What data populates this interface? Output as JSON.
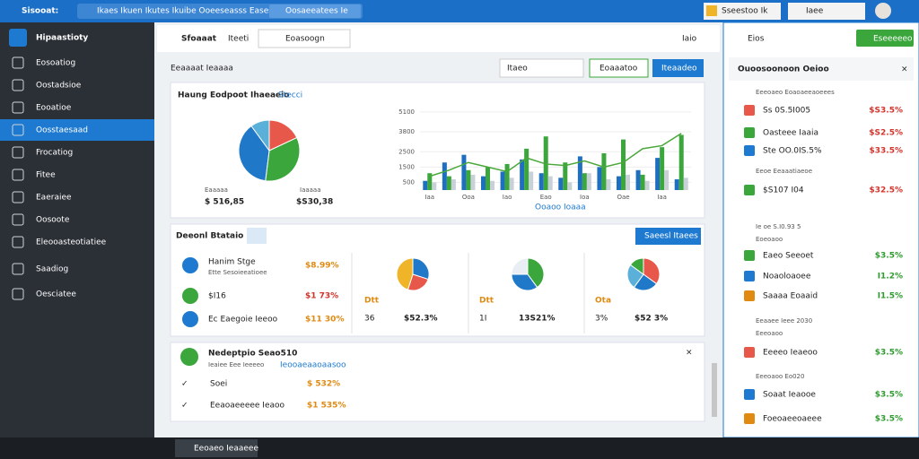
{
  "window": {
    "app_title": "Sisooat:",
    "address": "Ikaes Ikuen Ikutes Ikuibe Ooeeseasss Eases Ib",
    "tab": "Oosaeeatees Ie",
    "account": "Sseestoo Ik",
    "search": "Iaee"
  },
  "sidebar": {
    "title": "Hipaastioty",
    "items": [
      "Eosoatiog",
      "Oostadsioe",
      "Eooatioe",
      "Oosstaesaad",
      "Frocatiog",
      "Fitee",
      "Eaeraiee",
      "Oosoote",
      "Eleooasteotiatiee",
      "Saadiog",
      "Oesciatee"
    ]
  },
  "toolbar": {
    "left": "Sfoaaat",
    "tab": "Iteeti",
    "dropdown": "Eoasoogn",
    "right": "Iaio"
  },
  "section": {
    "title": "Eeaaaat Ieaaaa",
    "filter": "Itaeo",
    "button1": "Eoaaatoo",
    "button2": "Iteaadeo"
  },
  "overview": {
    "title": "Haung Eodpoot Ihaeaeio",
    "tag": "Stecci",
    "stat1": {
      "label": "Eaaaaa",
      "value": "$ 516,85"
    },
    "stat2": {
      "label": "Iaaaaa",
      "value": "$S30,38"
    },
    "legend": "Ooaoo Ioaaa",
    "pie": {
      "type": "pie",
      "values": [
        18,
        34,
        38,
        10
      ],
      "colors": [
        "#e8584a",
        "#3aa63c",
        "#1f78c8",
        "#5ab0d8"
      ]
    },
    "chart_data": {
      "type": "bar",
      "categories": [
        "Iaa",
        null,
        "Ooa",
        null,
        "Iao",
        null,
        "Eao",
        null,
        "Ioa",
        null,
        "Oae",
        null,
        "Iaa",
        null
      ],
      "series": [
        {
          "name": "A",
          "color": "#1f6fc0",
          "values": [
            600,
            1800,
            2300,
            900,
            1200,
            2000,
            1100,
            800,
            2200,
            1500,
            900,
            1300,
            2100,
            700
          ]
        },
        {
          "name": "B",
          "color": "#3aa63c",
          "values": [
            1100,
            900,
            1300,
            1500,
            1700,
            2700,
            3500,
            1800,
            1100,
            2400,
            3300,
            1000,
            2800,
            3600
          ]
        },
        {
          "name": "C",
          "color": "#c8d0d8",
          "values": [
            500,
            700,
            1000,
            600,
            800,
            1200,
            900,
            500,
            1100,
            700,
            1000,
            600,
            1300,
            800
          ]
        }
      ],
      "line": {
        "name": "Trend",
        "color": "#4aa83a",
        "values": [
          900,
          1300,
          1800,
          1500,
          1200,
          2100,
          1700,
          1600,
          1900,
          1500,
          1800,
          2700,
          2900,
          3700
        ]
      },
      "ylim": [
        0,
        5500
      ],
      "yticks": [
        500,
        1500,
        2500,
        3800,
        5100
      ]
    }
  },
  "details": {
    "title": "Deeonl Btataio",
    "button": "Saeesl Itaees",
    "rows": [
      {
        "name": "Hanim Stge",
        "sub": "Ette Sesoieeatioee",
        "value": "$8.99%"
      },
      {
        "name": "$I16",
        "value": "$1 73%"
      },
      {
        "name": "Ec Eaegoie Ieeoo",
        "value": "$11 30%"
      }
    ],
    "pies": [
      {
        "type": "pie",
        "values": [
          30,
          25,
          45
        ],
        "colors": [
          "#1f78c8",
          "#e8584a",
          "#f0b429"
        ],
        "label": "Dtt",
        "small": "36",
        "value": "$52.3%"
      },
      {
        "type": "pie",
        "values": [
          40,
          35,
          25
        ],
        "colors": [
          "#3aa63c",
          "#1f78c8",
          "#e8eef4"
        ],
        "label": "Dtt",
        "small": "1I",
        "value": "13S21%"
      },
      {
        "type": "pie",
        "values": [
          35,
          25,
          25,
          15
        ],
        "colors": [
          "#e8584a",
          "#1f78c8",
          "#5ab0d8",
          "#3aa63c"
        ],
        "label": "Ota",
        "small": "3%",
        "value": "$52 3%"
      }
    ]
  },
  "notice": {
    "title": "Nedeptpio Seao510",
    "sub": "Ieaiee Eee Ieeeeo",
    "link": "Ieooaeaaoaasoo",
    "rows": [
      {
        "name": "Soei",
        "value": "$ 532%"
      },
      {
        "name": "Eeaoaeeeee Ieaoo",
        "value": "$1 535%"
      }
    ]
  },
  "panel": {
    "tab": "Eios",
    "action": "Eseeeeeo",
    "title": "Ouoosoonoon Oeioo",
    "items": [
      {
        "text": "Eeeoaeo Eoaoaeeaoeees"
      },
      {
        "text": "Ss 0S.5I005",
        "value": "$S3.5%"
      },
      {
        "text": "Oasteee Iaaia",
        "value": "$S2.5%"
      },
      {
        "text": "Ste OO.0IS.5%",
        "value": "$33.5%"
      },
      {
        "text": "Eeoe Eeaaatiaeoe"
      },
      {
        "text": "$S107 I04",
        "value": "$32.5%"
      },
      {
        "text": "Ie oe S.I0.93 5"
      },
      {
        "text": "Eoeoaoo"
      },
      {
        "text": "Eaeo Seeoet",
        "value": "$3.5%"
      },
      {
        "text": "Noaoloaoee",
        "value": "I1.2%"
      },
      {
        "text": "Saaaa Eoaaid",
        "value": "I1.5%"
      },
      {
        "text": "Eeaaee Ieee 2030"
      },
      {
        "text": "Eeeoaoo"
      },
      {
        "text": "Eeeeo Ieaeoo",
        "value": "$3.5%"
      },
      {
        "text": "Eeeoaoo Eo020"
      },
      {
        "text": "Soaat Ieaooe",
        "value": "$3.5%"
      },
      {
        "text": "Foeoaeeoaeee",
        "value": "$3.5%"
      }
    ]
  },
  "taskbar": {
    "app": "Eeoaeo Ieaaeee"
  }
}
